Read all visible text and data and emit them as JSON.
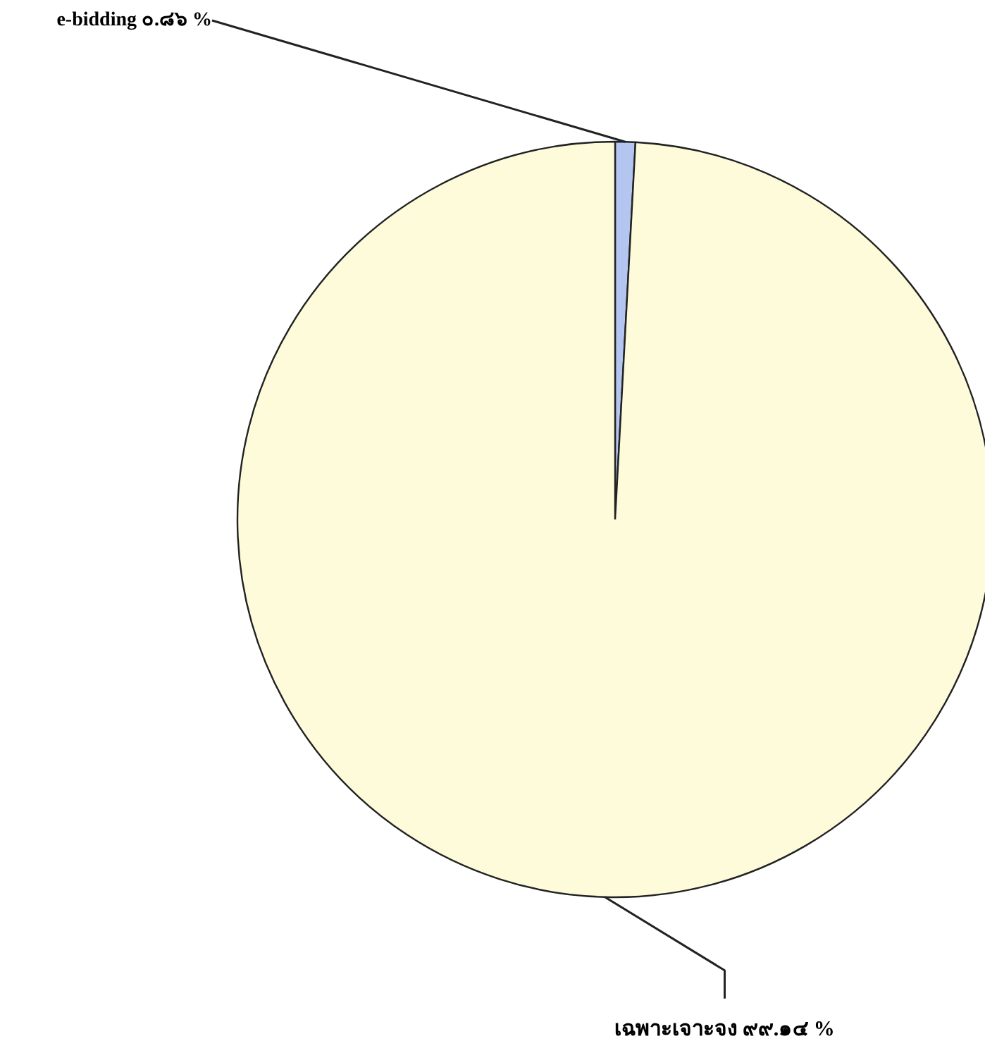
{
  "chart_data": {
    "type": "pie",
    "categories": [
      "e-bidding",
      "เฉพาะเจาะจง"
    ],
    "values": [
      0.86,
      99.14
    ],
    "value_labels": [
      "๐.๘๖ %",
      "๙๙.๑๔ %"
    ],
    "colors": [
      "#b4c6f0",
      "#fdfbd9"
    ]
  }
}
